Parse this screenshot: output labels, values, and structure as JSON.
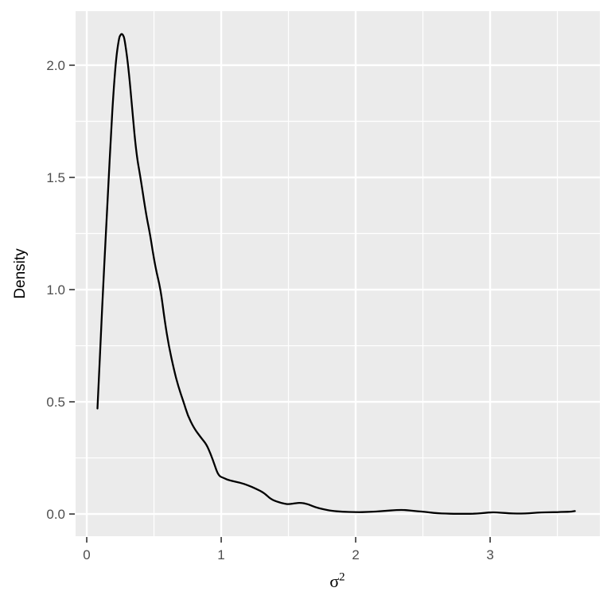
{
  "figure": {
    "background": "#FFFFFF"
  },
  "chart_data": {
    "type": "line",
    "subtype": "kernel-density",
    "title": "",
    "xlabel": "σ²",
    "xlabel_base": "σ",
    "xlabel_exponent": "2",
    "ylabel": "Density",
    "legend": "none",
    "grid": true,
    "x_tick_labels": [
      "0",
      "1",
      "2",
      "3"
    ],
    "x_tick_values": [
      0,
      1,
      2,
      3
    ],
    "y_tick_labels": [
      "0.0",
      "0.5",
      "1.0",
      "1.5",
      "2.0"
    ],
    "y_tick_values": [
      0,
      0.5,
      1.0,
      1.5,
      2.0
    ],
    "x_minor_breaks": [
      0.5,
      1.5,
      2.5,
      3.5
    ],
    "y_minor_breaks": [
      0.25,
      0.75,
      1.25,
      1.75
    ],
    "xlim": [
      -0.083,
      3.816
    ],
    "ylim": [
      -0.099,
      2.241
    ],
    "peak": {
      "x": 0.26,
      "density": 2.14
    },
    "series": [
      {
        "name": "density",
        "points": [
          [
            0.08,
            0.47
          ],
          [
            0.09,
            0.6
          ],
          [
            0.1,
            0.73
          ],
          [
            0.11,
            0.86
          ],
          [
            0.12,
            0.99
          ],
          [
            0.14,
            1.22
          ],
          [
            0.16,
            1.46
          ],
          [
            0.18,
            1.69
          ],
          [
            0.2,
            1.89
          ],
          [
            0.22,
            2.04
          ],
          [
            0.24,
            2.12
          ],
          [
            0.25,
            2.135
          ],
          [
            0.26,
            2.14
          ],
          [
            0.27,
            2.135
          ],
          [
            0.28,
            2.12
          ],
          [
            0.3,
            2.04
          ],
          [
            0.32,
            1.93
          ],
          [
            0.34,
            1.79
          ],
          [
            0.37,
            1.6
          ],
          [
            0.4,
            1.5
          ],
          [
            0.44,
            1.34
          ],
          [
            0.47,
            1.25
          ],
          [
            0.51,
            1.1
          ],
          [
            0.55,
            1.0
          ],
          [
            0.58,
            0.86
          ],
          [
            0.61,
            0.75
          ],
          [
            0.65,
            0.64
          ],
          [
            0.68,
            0.57
          ],
          [
            0.72,
            0.5
          ],
          [
            0.75,
            0.44
          ],
          [
            0.8,
            0.38
          ],
          [
            0.85,
            0.34
          ],
          [
            0.89,
            0.31
          ],
          [
            0.92,
            0.27
          ],
          [
            0.95,
            0.22
          ],
          [
            0.98,
            0.17
          ],
          [
            1.02,
            0.16
          ],
          [
            1.06,
            0.15
          ],
          [
            1.14,
            0.14
          ],
          [
            1.2,
            0.128
          ],
          [
            1.26,
            0.112
          ],
          [
            1.32,
            0.094
          ],
          [
            1.37,
            0.065
          ],
          [
            1.43,
            0.052
          ],
          [
            1.47,
            0.046
          ],
          [
            1.5,
            0.043
          ],
          [
            1.56,
            0.049
          ],
          [
            1.6,
            0.05
          ],
          [
            1.65,
            0.043
          ],
          [
            1.7,
            0.03
          ],
          [
            1.76,
            0.021
          ],
          [
            1.82,
            0.014
          ],
          [
            1.9,
            0.01
          ],
          [
            2.0,
            0.008
          ],
          [
            2.1,
            0.009
          ],
          [
            2.2,
            0.013
          ],
          [
            2.31,
            0.018
          ],
          [
            2.37,
            0.018
          ],
          [
            2.43,
            0.014
          ],
          [
            2.49,
            0.011
          ],
          [
            2.55,
            0.007
          ],
          [
            2.61,
            0.003
          ],
          [
            2.67,
            0.002
          ],
          [
            2.73,
            0.001
          ],
          [
            2.79,
            0.001
          ],
          [
            2.85,
            0.001
          ],
          [
            2.9,
            0.002
          ],
          [
            2.96,
            0.005
          ],
          [
            3.02,
            0.008
          ],
          [
            3.08,
            0.006
          ],
          [
            3.14,
            0.003
          ],
          [
            3.2,
            0.002
          ],
          [
            3.26,
            0.002
          ],
          [
            3.32,
            0.005
          ],
          [
            3.38,
            0.007
          ],
          [
            3.44,
            0.008
          ],
          [
            3.5,
            0.008
          ],
          [
            3.55,
            0.01
          ],
          [
            3.6,
            0.01
          ],
          [
            3.63,
            0.013
          ]
        ]
      }
    ],
    "style": {
      "panel_background": "#EBEBEB",
      "grid_color": "#FFFFFF",
      "line_color": "#000000",
      "tick_mark_color": "#333333",
      "tick_label_color": "#4D4D4D",
      "axis_title_color": "#000000"
    }
  }
}
